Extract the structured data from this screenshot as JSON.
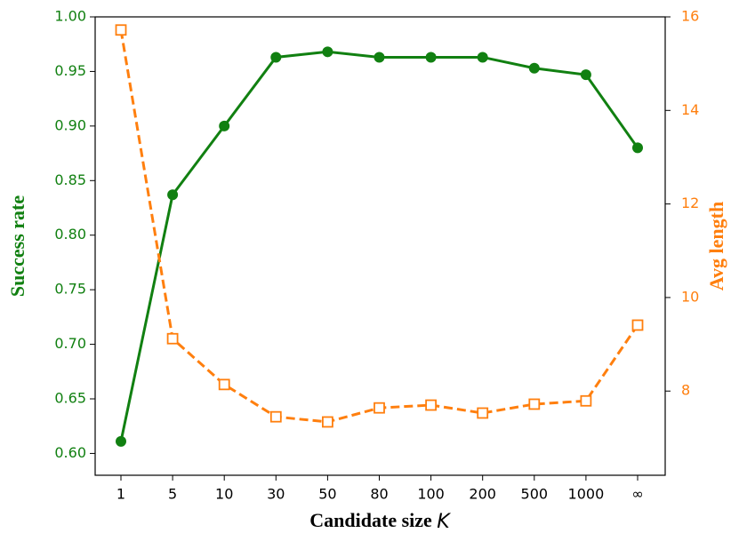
{
  "chart_data": {
    "type": "line",
    "x_label": "Candidate size",
    "x_label_symbol": "K",
    "y_label": "Success rate",
    "y2_label": "Avg length",
    "categories": [
      "1",
      "5",
      "10",
      "30",
      "50",
      "80",
      "100",
      "200",
      "500",
      "1000",
      "∞"
    ],
    "ylim": [
      0.58,
      1.0
    ],
    "yticks": [
      {
        "value": 0.6,
        "label": "0.60"
      },
      {
        "value": 0.65,
        "label": "0.65"
      },
      {
        "value": 0.7,
        "label": "0.70"
      },
      {
        "value": 0.75,
        "label": "0.75"
      },
      {
        "value": 0.8,
        "label": "0.80"
      },
      {
        "value": 0.85,
        "label": "0.85"
      },
      {
        "value": 0.9,
        "label": "0.90"
      },
      {
        "value": 0.95,
        "label": "0.95"
      },
      {
        "value": 1.0,
        "label": "1.00"
      }
    ],
    "y2lim": [
      6.2,
      16
    ],
    "y2ticks": [
      8,
      10,
      12,
      14,
      16
    ],
    "y_color": "#118011",
    "y2_color": "#ff7f0e",
    "series": [
      {
        "name": "Success rate",
        "color": "#118011",
        "marker": "circle",
        "dashed": false,
        "values": [
          0.611,
          0.837,
          0.9,
          0.963,
          0.968,
          0.963,
          0.963,
          0.963,
          0.953,
          0.947,
          0.88
        ]
      },
      {
        "name": "Avg length",
        "color": "#ff7f0e",
        "marker": "square",
        "dashed": true,
        "axis": "y2",
        "values": [
          15.72,
          9.12,
          8.14,
          7.45,
          7.34,
          7.64,
          7.7,
          7.53,
          7.72,
          7.79,
          9.41
        ]
      }
    ]
  }
}
